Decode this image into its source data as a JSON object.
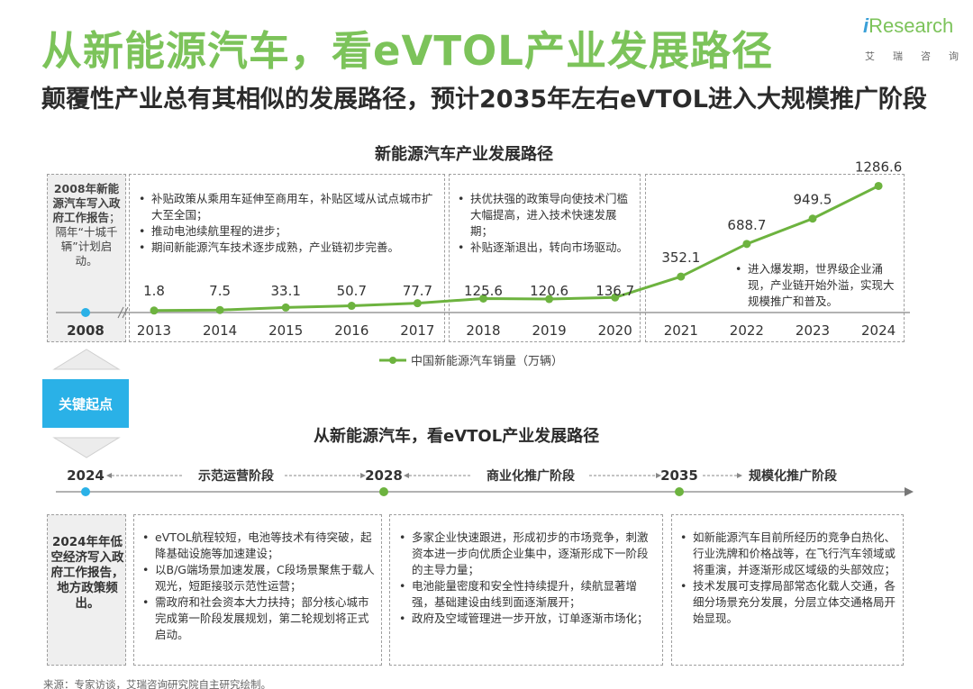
{
  "header": {
    "title": "从新能源汽车，看eVTOL产业发展路径",
    "subtitle": "颠覆性产业总有其相似的发展路径，预计2035年左右eVTOL进入大规模推广阶段"
  },
  "logo": {
    "prefix": "i",
    "name": "Research",
    "sub": [
      "艾",
      "瑞",
      "咨",
      "询"
    ]
  },
  "ev_section": {
    "title": "新能源汽车产业发展路径",
    "start_year": "2008",
    "note_bold": "2008年新能源汽车写入政府工作报告",
    "note_plain": "；隔年“十城千辆”计划启动。",
    "phase1": [
      "补贴政策从乘用车延伸至商用车，补贴区域从试点城市扩大至全国；",
      "推动电池续航里程的进步；",
      "期间新能源汽车技术逐步成熟，产业链初步完善。"
    ],
    "phase2": [
      "扶优扶强的政策导向使技术门槛大幅提高，进入技术快速发展期；",
      "补贴逐渐退出，转向市场驱动。"
    ],
    "phase3": [
      "进入爆发期，世界级企业涌现，产业链开始外溢，实现大规模推广和普及。"
    ]
  },
  "chart_data": {
    "type": "line",
    "categories": [
      "2013",
      "2014",
      "2015",
      "2016",
      "2017",
      "2018",
      "2019",
      "2020",
      "2021",
      "2022",
      "2023",
      "2024"
    ],
    "series": [
      {
        "name": "中国新能源汽车销量（万辆）",
        "values": [
          1.8,
          7.5,
          33.1,
          50.7,
          77.7,
          125.6,
          120.6,
          136.7,
          352.1,
          688.7,
          949.5,
          1286.6
        ]
      }
    ],
    "value_labels": [
      "1.8",
      "7.5",
      "33.1",
      "50.7",
      "77.7",
      "125.6",
      "120.6",
      "136.7",
      "352.1",
      "688.7",
      "949.5",
      "1286.6"
    ],
    "ylim": [
      0,
      1300
    ],
    "legend": "bottom",
    "grid": false,
    "line_color": "#6db33f"
  },
  "key_start": {
    "label": "关键起点"
  },
  "evtol_section": {
    "title": "从新能源汽车，看eVTOL产业发展路径",
    "milestones": [
      {
        "year": "2024",
        "stage": "示范运营阶段"
      },
      {
        "year": "2028",
        "stage": "商业化推广阶段"
      },
      {
        "year": "2035",
        "stage": "规模化推广阶段"
      }
    ],
    "note": "2024年年低空经济写入政府工作报告，地方政策频出。",
    "col1": [
      "eVTOL航程较短，电池等技术有待突破，起降基础设施等加速建设；",
      "以B/G端场景加速发展，C段场景聚焦于载人观光，短距接驳示范性运营；",
      "需政府和社会资本大力扶持；部分核心城市完成第一阶段发展规划，第二轮规划将正式启动。"
    ],
    "col2": [
      "多家企业快速跟进，形成初步的市场竞争，刺激资本进一步向优质企业集中，逐渐形成下一阶段的主导力量；",
      "电池能量密度和安全性持续提升，续航显著增强，基础建设由线到面逐渐展开；",
      "政府及空域管理进一步开放，订单逐渐市场化；"
    ],
    "col3": [
      "如新能源汽车目前所经历的竞争白热化、行业洗牌和价格战等，在飞行汽车领域或将重演，并逐渐形成区域级的头部效应；",
      "技术发展可支撑局部常态化载人交通，各细分场景充分发展，分层立体交通格局开始显现。"
    ]
  },
  "source": "来源：专家访谈，艾瑞咨询研究院自主研究绘制。",
  "colors": {
    "green": "#7cc35a",
    "blue": "#2ab1e7",
    "gray": "#efefef"
  }
}
